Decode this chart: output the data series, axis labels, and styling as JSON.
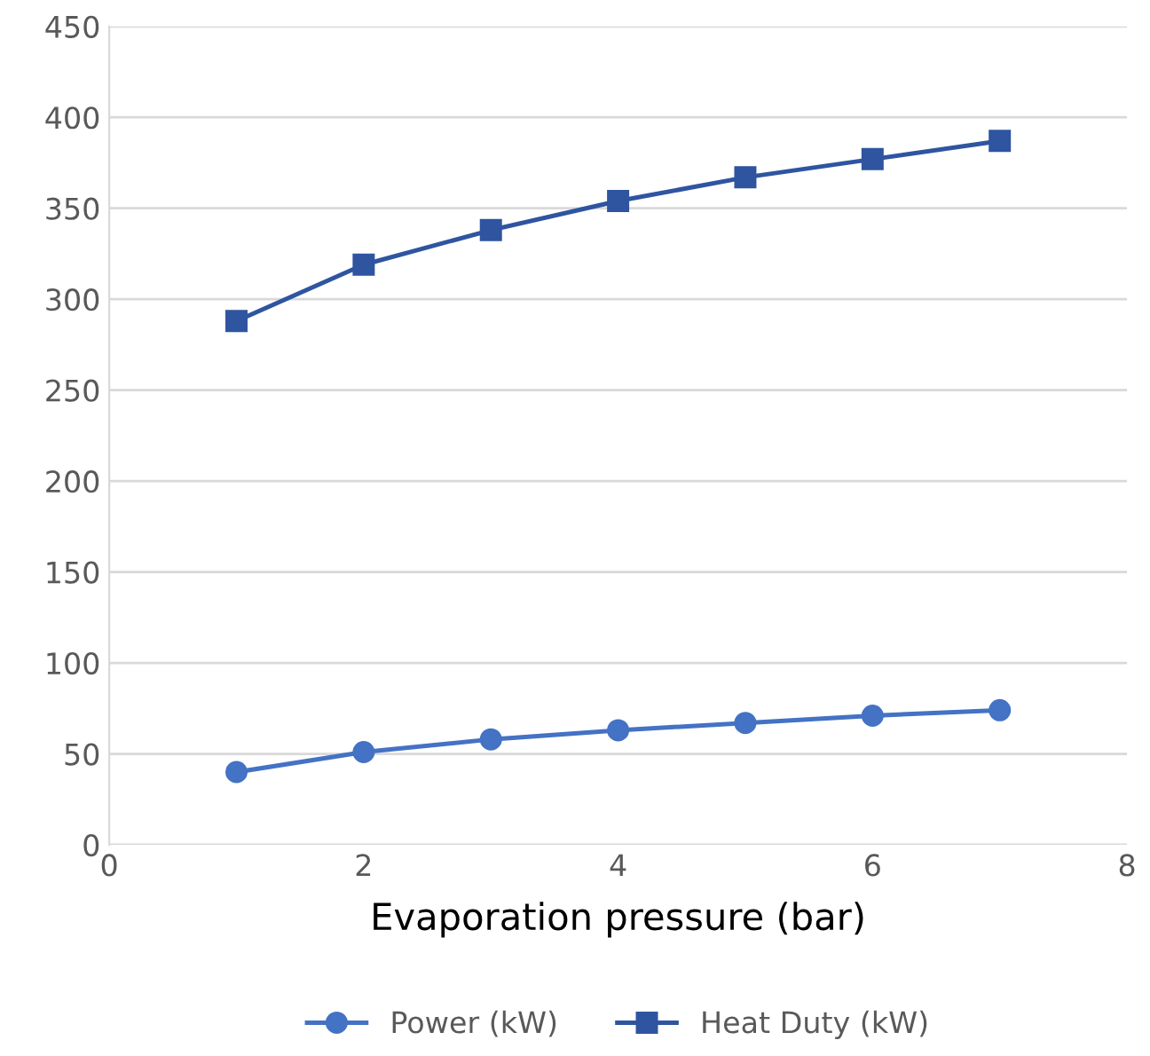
{
  "chart_data": {
    "type": "line",
    "xlabel": "Evaporation pressure (bar)",
    "x": [
      1,
      2,
      3,
      4,
      5,
      6,
      7
    ],
    "series": [
      {
        "name": "Power (kW)",
        "color": "#4472c4",
        "marker": "circle",
        "values": [
          40,
          51,
          58,
          63,
          67,
          71,
          74
        ]
      },
      {
        "name": "Heat Duty (kW)",
        "color": "#2f55a0",
        "marker": "square",
        "values": [
          288,
          319,
          338,
          354,
          367,
          377,
          387
        ]
      }
    ],
    "xlim": [
      0,
      8
    ],
    "xticks": [
      0,
      2,
      4,
      6,
      8
    ],
    "ylim": [
      0,
      450
    ],
    "yticks": [
      0,
      50,
      100,
      150,
      200,
      250,
      300,
      350,
      400,
      450
    ],
    "grid": "y",
    "legend": "bottom",
    "line_style": "solid"
  }
}
